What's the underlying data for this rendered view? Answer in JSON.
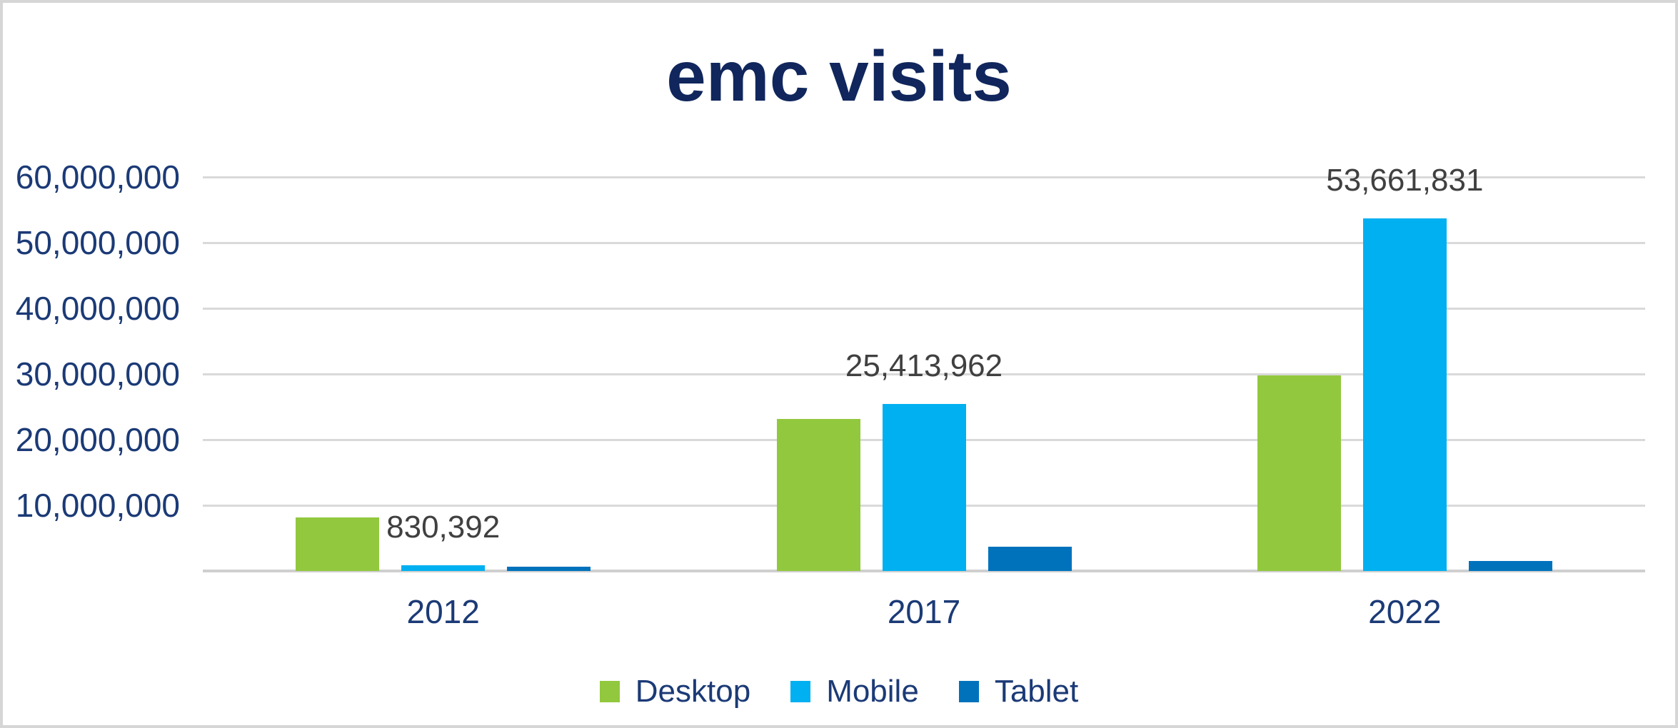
{
  "title": "emc visits",
  "chart_data": {
    "type": "bar",
    "title": "emc visits",
    "categories": [
      "2012",
      "2017",
      "2022"
    ],
    "series": [
      {
        "name": "Desktop",
        "color": "#92C83E",
        "values": [
          8200000,
          23100000,
          29800000
        ]
      },
      {
        "name": "Mobile",
        "color": "#00B0F0",
        "values": [
          830392,
          25413962,
          53661831
        ],
        "data_labels": [
          "830,392",
          "25,413,962",
          "53,661,831"
        ]
      },
      {
        "name": "Tablet",
        "color": "#0072BC",
        "values": [
          600000,
          3700000,
          1500000
        ]
      }
    ],
    "y_axis": {
      "min": 0,
      "max": 60000000,
      "step": 10000000,
      "tick_labels": [
        "10,000,000",
        "20,000,000",
        "30,000,000",
        "40,000,000",
        "50,000,000",
        "60,000,000"
      ]
    },
    "grid": true,
    "legend_position": "bottom",
    "text_colors": {
      "title": "#10265C",
      "axis": "#1B3A76",
      "data_label": "#404040"
    },
    "gridline_color": "#D9D9D9",
    "axis_line_color": "#CFCFCF"
  }
}
